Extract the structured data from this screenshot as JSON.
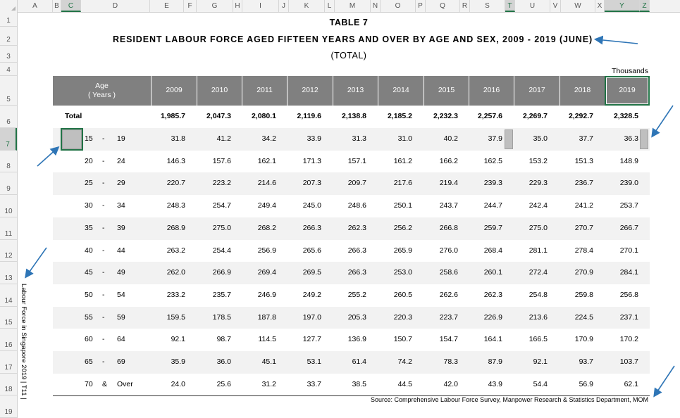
{
  "columns": [
    "A",
    "B",
    "C",
    "D",
    "E",
    "F",
    "G",
    "H",
    "I",
    "J",
    "K",
    "L",
    "M",
    "N",
    "O",
    "P",
    "Q",
    "R",
    "S",
    "T",
    "U",
    "V",
    "W",
    "X",
    "Y",
    "Z"
  ],
  "rows": [
    "1",
    "2",
    "3",
    "4",
    "5",
    "6",
    "7",
    "8",
    "9",
    "10",
    "11",
    "12",
    "13",
    "14",
    "15",
    "16",
    "17",
    "18",
    "19"
  ],
  "sheet": {
    "title": "TABLE 7",
    "subtitle": "RESIDENT  LABOUR  FORCE  AGED  FIFTEEN  YEARS  AND  OVER  BY  AGE  AND  SEX,  2009 - 2019  (JUNE)",
    "section": "(TOTAL)",
    "units": "Thousands",
    "age_header_line1": "Age",
    "age_header_line2": "( Years )",
    "years": [
      "2009",
      "2010",
      "2011",
      "2012",
      "2013",
      "2014",
      "2015",
      "2016",
      "2017",
      "2018",
      "2019"
    ],
    "total": {
      "label": "Total",
      "values": [
        "1,985.7",
        "2,047.3",
        "2,080.1",
        "2,119.6",
        "2,138.8",
        "2,185.2",
        "2,232.3",
        "2,257.6",
        "2,269.7",
        "2,292.7",
        "2,328.5"
      ]
    },
    "age_rows": [
      {
        "from": "15",
        "sep": "-",
        "to": "19",
        "values": [
          "31.8",
          "41.2",
          "34.2",
          "33.9",
          "31.3",
          "31.0",
          "40.2",
          "37.9",
          "35.0",
          "37.7",
          "36.3"
        ]
      },
      {
        "from": "20",
        "sep": "-",
        "to": "24",
        "values": [
          "146.3",
          "157.6",
          "162.1",
          "171.3",
          "157.1",
          "161.2",
          "166.2",
          "162.5",
          "153.2",
          "151.3",
          "148.9"
        ]
      },
      {
        "from": "25",
        "sep": "-",
        "to": "29",
        "values": [
          "220.7",
          "223.2",
          "214.6",
          "207.3",
          "209.7",
          "217.6",
          "219.4",
          "239.3",
          "229.3",
          "236.7",
          "239.0"
        ]
      },
      {
        "from": "30",
        "sep": "-",
        "to": "34",
        "values": [
          "248.3",
          "254.7",
          "249.4",
          "245.0",
          "248.6",
          "250.1",
          "243.7",
          "244.7",
          "242.4",
          "241.2",
          "253.7"
        ]
      },
      {
        "from": "35",
        "sep": "-",
        "to": "39",
        "values": [
          "268.9",
          "275.0",
          "268.2",
          "266.3",
          "262.3",
          "256.2",
          "266.8",
          "259.7",
          "275.0",
          "270.7",
          "266.7"
        ]
      },
      {
        "from": "40",
        "sep": "-",
        "to": "44",
        "values": [
          "263.2",
          "254.4",
          "256.9",
          "265.6",
          "266.3",
          "265.9",
          "276.0",
          "268.4",
          "281.1",
          "278.4",
          "270.1"
        ]
      },
      {
        "from": "45",
        "sep": "-",
        "to": "49",
        "values": [
          "262.0",
          "266.9",
          "269.4",
          "269.5",
          "266.3",
          "253.0",
          "258.6",
          "260.1",
          "272.4",
          "270.9",
          "284.1"
        ]
      },
      {
        "from": "50",
        "sep": "-",
        "to": "54",
        "values": [
          "233.2",
          "235.7",
          "246.9",
          "249.2",
          "255.2",
          "260.5",
          "262.6",
          "262.3",
          "254.8",
          "259.8",
          "256.8"
        ]
      },
      {
        "from": "55",
        "sep": "-",
        "to": "59",
        "values": [
          "159.5",
          "178.5",
          "187.8",
          "197.0",
          "205.3",
          "220.3",
          "223.7",
          "226.9",
          "213.6",
          "224.5",
          "237.1"
        ]
      },
      {
        "from": "60",
        "sep": "-",
        "to": "64",
        "values": [
          "92.1",
          "98.7",
          "114.5",
          "127.7",
          "136.9",
          "150.7",
          "154.7",
          "164.1",
          "166.5",
          "170.9",
          "170.2"
        ]
      },
      {
        "from": "65",
        "sep": "-",
        "to": "69",
        "values": [
          "35.9",
          "36.0",
          "45.1",
          "53.1",
          "61.4",
          "74.2",
          "78.3",
          "87.9",
          "92.1",
          "93.7",
          "103.7"
        ]
      },
      {
        "from": "70",
        "sep": "&",
        "to": "Over",
        "values": [
          "24.0",
          "25.6",
          "31.2",
          "33.7",
          "38.5",
          "44.5",
          "42.0",
          "43.9",
          "54.4",
          "56.9",
          "62.1"
        ]
      }
    ],
    "source": "Source:  Comprehensive Labour Force Survey, Manpower Research & Statistics Department, MOM",
    "vertical_note": "Labour Force in Singapore 2019 | T11 |"
  },
  "selection": {
    "column": "C",
    "row": "7",
    "highlighted_columns": [
      "C",
      "T",
      "Y",
      "Z"
    ]
  },
  "colors": {
    "header_band": "#808080",
    "stripe": "#f2f2f2",
    "select_accent": "#217346",
    "arrow": "#2e75b6"
  }
}
